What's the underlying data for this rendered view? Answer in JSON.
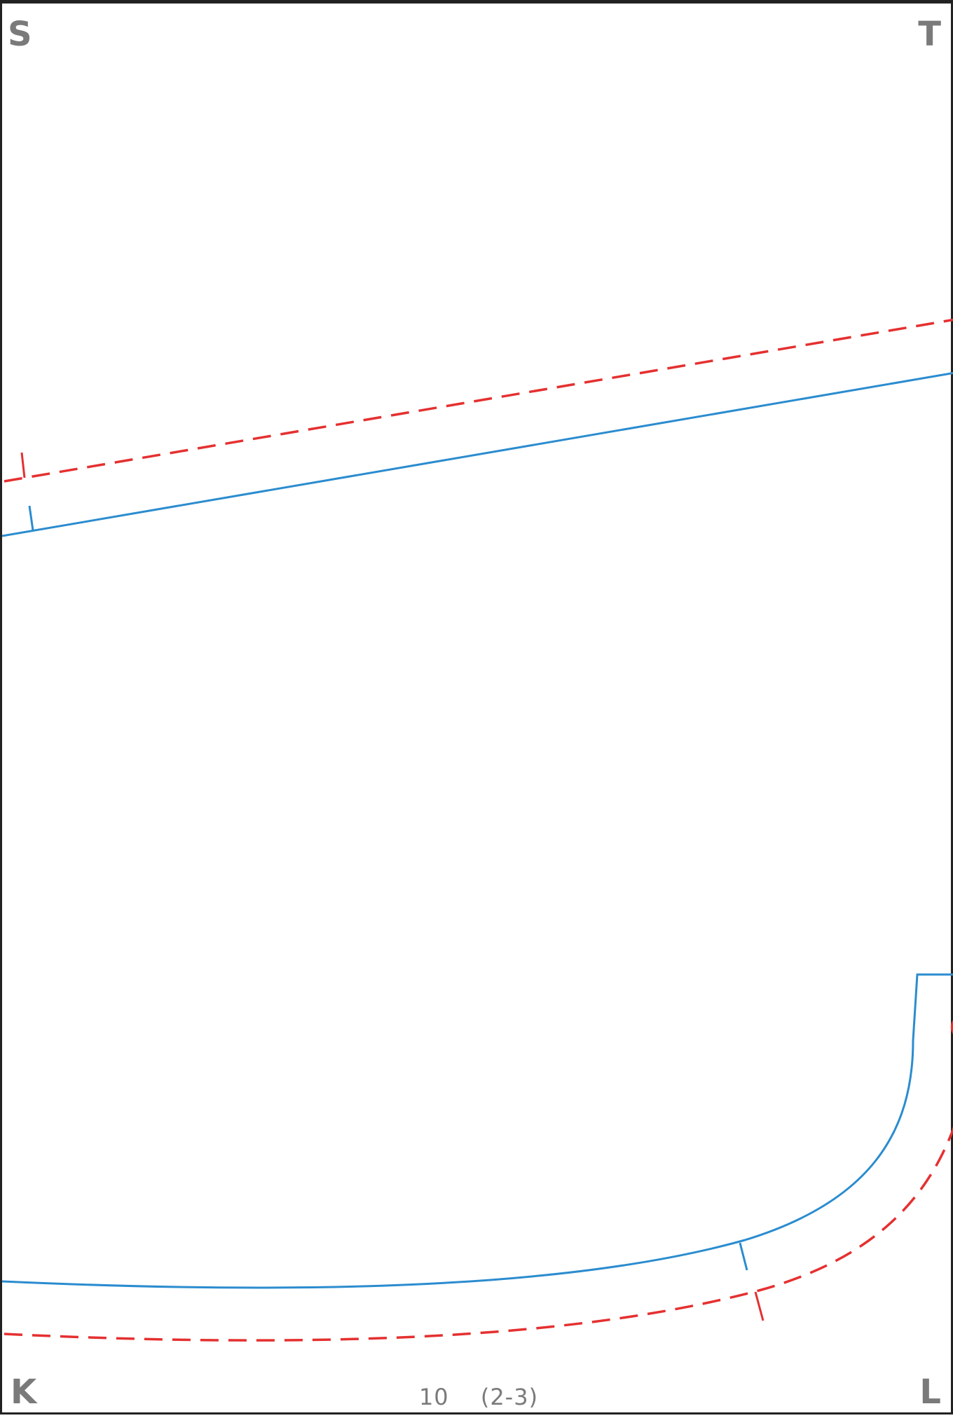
{
  "corners": {
    "top_left": "S",
    "top_right": "T",
    "bottom_left": "K",
    "bottom_right": "L"
  },
  "footer": {
    "page_number": "10",
    "grid_ref": "(2-3)"
  },
  "colors": {
    "cut_line": "#2b8ccf",
    "seam_allowance": "#e53030",
    "corner_letters": "#7a7a7a",
    "border": "#222222"
  }
}
